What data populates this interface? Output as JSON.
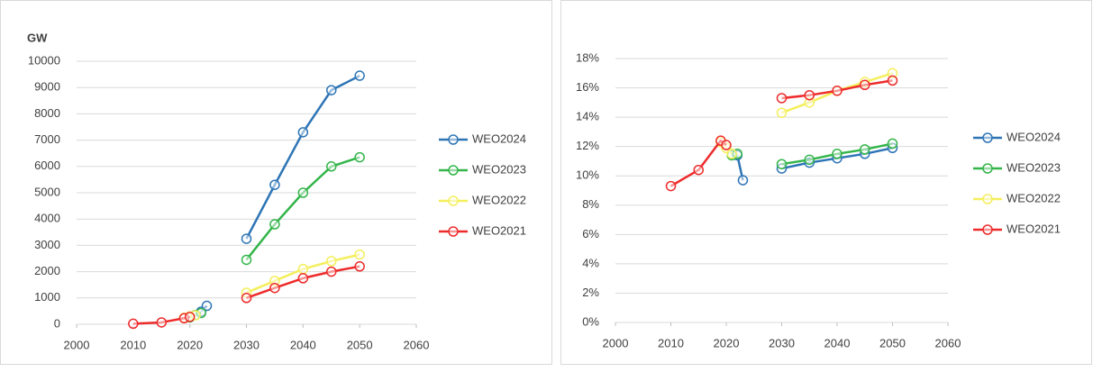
{
  "chart_data": [
    {
      "type": "line",
      "ylabel": "GW",
      "xlim": [
        2000,
        2060
      ],
      "xticks": [
        2000,
        2010,
        2020,
        2030,
        2040,
        2050,
        2060
      ],
      "ylim": [
        0,
        10000
      ],
      "yticks": [
        0,
        1000,
        2000,
        3000,
        4000,
        5000,
        6000,
        7000,
        8000,
        9000,
        10000
      ],
      "grid": true,
      "legend": "right",
      "series": [
        {
          "name": "WEO2024",
          "color": "#2e75b6",
          "x": [
            2022,
            2023,
            null,
            2030,
            2035,
            2040,
            2045,
            2050
          ],
          "values": [
            480,
            700,
            null,
            3250,
            5300,
            7300,
            8900,
            9450
          ]
        },
        {
          "name": "WEO2023",
          "color": "#33b54a",
          "x": [
            2020,
            2021,
            2022,
            null,
            2030,
            2035,
            2040,
            2045,
            2050
          ],
          "values": [
            260,
            350,
            430,
            null,
            2450,
            3800,
            5000,
            6000,
            6350
          ]
        },
        {
          "name": "WEO2022",
          "color": "#f4ef5c",
          "x": [
            2019,
            2020,
            2021,
            null,
            2030,
            2035,
            2040,
            2045,
            2050
          ],
          "values": [
            250,
            300,
            340,
            null,
            1200,
            1650,
            2100,
            2400,
            2650
          ]
        },
        {
          "name": "WEO2021",
          "color": "#ee2b2b",
          "x": [
            2010,
            2015,
            2019,
            2020,
            null,
            2030,
            2035,
            2040,
            2045,
            2050
          ],
          "values": [
            20,
            70,
            230,
            280,
            null,
            1000,
            1380,
            1750,
            2000,
            2200
          ]
        }
      ]
    },
    {
      "type": "line",
      "xlim": [
        2000,
        2060
      ],
      "xticks": [
        2000,
        2010,
        2020,
        2030,
        2040,
        2050,
        2060
      ],
      "ylim": [
        0,
        18
      ],
      "yticks": [
        {
          "value": 0,
          "label": "0%"
        },
        {
          "value": 2,
          "label": "2%"
        },
        {
          "value": 4,
          "label": "4%"
        },
        {
          "value": 6,
          "label": "6%"
        },
        {
          "value": 8,
          "label": "8%"
        },
        {
          "value": 10,
          "label": "10%"
        },
        {
          "value": 12,
          "label": "12%"
        },
        {
          "value": 14,
          "label": "14%"
        },
        {
          "value": 16,
          "label": "16%"
        },
        {
          "value": 18,
          "label": "18%"
        }
      ],
      "grid": true,
      "legend": "right",
      "series": [
        {
          "name": "WEO2024",
          "color": "#2e75b6",
          "x": [
            2022,
            2023,
            null,
            2030,
            2035,
            2040,
            2045,
            2050
          ],
          "values": [
            11.4,
            9.7,
            null,
            10.5,
            10.9,
            11.2,
            11.5,
            11.9
          ]
        },
        {
          "name": "WEO2023",
          "color": "#33b54a",
          "x": [
            2021,
            2022,
            null,
            2030,
            2035,
            2040,
            2045,
            2050
          ],
          "values": [
            11.4,
            11.5,
            null,
            10.8,
            11.1,
            11.5,
            11.8,
            12.2
          ]
        },
        {
          "name": "WEO2022",
          "color": "#f4ef5c",
          "x": [
            2019,
            2020,
            2021,
            null,
            2030,
            2035,
            2040,
            2045,
            2050
          ],
          "values": [
            12.3,
            11.9,
            11.5,
            null,
            14.3,
            15.0,
            15.8,
            16.4,
            17.0
          ]
        },
        {
          "name": "WEO2021",
          "color": "#ee2b2b",
          "x": [
            2010,
            2015,
            2019,
            2020,
            null,
            2030,
            2035,
            2040,
            2045,
            2050
          ],
          "values": [
            9.3,
            10.4,
            12.4,
            12.1,
            null,
            15.3,
            15.5,
            15.8,
            16.2,
            16.5
          ]
        }
      ]
    }
  ]
}
